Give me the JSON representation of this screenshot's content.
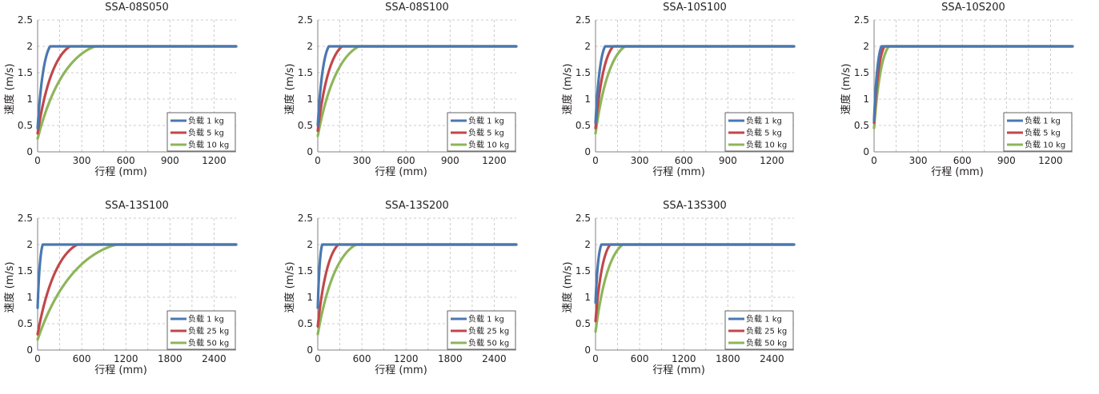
{
  "colors": {
    "load_light": "#4a78b0",
    "load_mid": "#c0474a",
    "load_heavy": "#8db55a",
    "grid": "#bfbfbf",
    "axis": "#808080"
  },
  "chart_data": [
    {
      "type": "line",
      "title": "SSA-08S050",
      "xlabel": "行程 (mm)",
      "ylabel": "速度 (m/s)",
      "xlim": [
        0,
        1350
      ],
      "ylim": [
        0,
        2.5
      ],
      "xticks": [
        0,
        300,
        600,
        900,
        1200
      ],
      "yticks": [
        0,
        0.5,
        1,
        1.5,
        2,
        2.5
      ],
      "grid": true,
      "legend": "bottom-right",
      "series": [
        {
          "name": "负载 1 kg",
          "values": [
            [
              0,
              0.45
            ],
            [
              85,
              2.0
            ],
            [
              1350,
              2.0
            ]
          ]
        },
        {
          "name": "负载 5 kg",
          "values": [
            [
              0,
              0.35
            ],
            [
              220,
              2.0
            ],
            [
              1350,
              2.0
            ]
          ]
        },
        {
          "name": "负载 10 kg",
          "values": [
            [
              0,
              0.25
            ],
            [
              390,
              2.0
            ],
            [
              1350,
              2.0
            ]
          ]
        }
      ]
    },
    {
      "type": "line",
      "title": "SSA-08S100",
      "xlabel": "行程 (mm)",
      "ylabel": "速度 (m/s)",
      "xlim": [
        0,
        1350
      ],
      "ylim": [
        0,
        2.5
      ],
      "xticks": [
        0,
        300,
        600,
        900,
        1200
      ],
      "yticks": [
        0,
        0.5,
        1,
        1.5,
        2,
        2.5
      ],
      "grid": true,
      "legend": "bottom-right",
      "series": [
        {
          "name": "负载 1 kg",
          "values": [
            [
              0,
              0.5
            ],
            [
              75,
              2.0
            ],
            [
              1350,
              2.0
            ]
          ]
        },
        {
          "name": "负载 5 kg",
          "values": [
            [
              0,
              0.4
            ],
            [
              165,
              2.0
            ],
            [
              1350,
              2.0
            ]
          ]
        },
        {
          "name": "负载 10 kg",
          "values": [
            [
              0,
              0.3
            ],
            [
              280,
              2.0
            ],
            [
              1350,
              2.0
            ]
          ]
        }
      ]
    },
    {
      "type": "line",
      "title": "SSA-10S100",
      "xlabel": "行程 (mm)",
      "ylabel": "速度 (m/s)",
      "xlim": [
        0,
        1350
      ],
      "ylim": [
        0,
        2.5
      ],
      "xticks": [
        0,
        300,
        600,
        900,
        1200
      ],
      "yticks": [
        0,
        0.5,
        1,
        1.5,
        2,
        2.5
      ],
      "grid": true,
      "legend": "bottom-right",
      "series": [
        {
          "name": "负载 1 kg",
          "values": [
            [
              0,
              0.55
            ],
            [
              65,
              2.0
            ],
            [
              1350,
              2.0
            ]
          ]
        },
        {
          "name": "负载 5 kg",
          "values": [
            [
              0,
              0.45
            ],
            [
              120,
              2.0
            ],
            [
              1350,
              2.0
            ]
          ]
        },
        {
          "name": "负载 10 kg",
          "values": [
            [
              0,
              0.35
            ],
            [
              200,
              2.0
            ],
            [
              1350,
              2.0
            ]
          ]
        }
      ]
    },
    {
      "type": "line",
      "title": "SSA-10S200",
      "xlabel": "行程 (mm)",
      "ylabel": "速度 (m/s)",
      "xlim": [
        0,
        1350
      ],
      "ylim": [
        0,
        2.5
      ],
      "xticks": [
        0,
        300,
        600,
        900,
        1200
      ],
      "yticks": [
        0,
        0.5,
        1,
        1.5,
        2,
        2.5
      ],
      "grid": true,
      "legend": "bottom-right",
      "series": [
        {
          "name": "负载 1 kg",
          "values": [
            [
              0,
              0.6
            ],
            [
              50,
              2.0
            ],
            [
              1350,
              2.0
            ]
          ]
        },
        {
          "name": "负载 5 kg",
          "values": [
            [
              0,
              0.55
            ],
            [
              70,
              2.0
            ],
            [
              1350,
              2.0
            ]
          ]
        },
        {
          "name": "负载 10 kg",
          "values": [
            [
              0,
              0.45
            ],
            [
              100,
              2.0
            ],
            [
              1350,
              2.0
            ]
          ]
        }
      ]
    },
    {
      "type": "line",
      "title": "SSA-13S100",
      "xlabel": "行程 (mm)",
      "ylabel": "速度 (m/s)",
      "xlim": [
        0,
        2700
      ],
      "ylim": [
        0,
        2.5
      ],
      "xticks": [
        0,
        600,
        1200,
        1800,
        2400
      ],
      "yticks": [
        0,
        0.5,
        1,
        1.5,
        2,
        2.5
      ],
      "grid": true,
      "legend": "bottom-right",
      "series": [
        {
          "name": "负载 1 kg",
          "values": [
            [
              0,
              0.8
            ],
            [
              70,
              2.0
            ],
            [
              2700,
              2.0
            ]
          ]
        },
        {
          "name": "负载 25 kg",
          "values": [
            [
              0,
              0.3
            ],
            [
              540,
              2.0
            ],
            [
              2700,
              2.0
            ]
          ]
        },
        {
          "name": "负载 50 kg",
          "values": [
            [
              0,
              0.2
            ],
            [
              1070,
              2.0
            ],
            [
              2700,
              2.0
            ]
          ]
        }
      ]
    },
    {
      "type": "line",
      "title": "SSA-13S200",
      "xlabel": "行程 (mm)",
      "ylabel": "速度 (m/s)",
      "xlim": [
        0,
        2700
      ],
      "ylim": [
        0,
        2.5
      ],
      "xticks": [
        0,
        600,
        1200,
        1800,
        2400
      ],
      "yticks": [
        0,
        0.5,
        1,
        1.5,
        2,
        2.5
      ],
      "grid": true,
      "legend": "bottom-right",
      "series": [
        {
          "name": "负载 1 kg",
          "values": [
            [
              0,
              0.8
            ],
            [
              60,
              2.0
            ],
            [
              2700,
              2.0
            ]
          ]
        },
        {
          "name": "负载 25 kg",
          "values": [
            [
              0,
              0.45
            ],
            [
              280,
              2.0
            ],
            [
              2700,
              2.0
            ]
          ]
        },
        {
          "name": "负载 50 kg",
          "values": [
            [
              0,
              0.3
            ],
            [
              520,
              2.0
            ],
            [
              2700,
              2.0
            ]
          ]
        }
      ]
    },
    {
      "type": "line",
      "title": "SSA-13S300",
      "xlabel": "行程 (mm)",
      "ylabel": "速度 (m/s)",
      "xlim": [
        0,
        2700
      ],
      "ylim": [
        0,
        2.5
      ],
      "xticks": [
        0,
        600,
        1200,
        1800,
        2400
      ],
      "yticks": [
        0,
        0.5,
        1,
        1.5,
        2,
        2.5
      ],
      "grid": true,
      "legend": "bottom-right",
      "series": [
        {
          "name": "负载 1 kg",
          "values": [
            [
              0,
              0.9
            ],
            [
              80,
              2.0
            ],
            [
              2700,
              2.0
            ]
          ]
        },
        {
          "name": "负载 25 kg",
          "values": [
            [
              0,
              0.55
            ],
            [
              200,
              2.0
            ],
            [
              2700,
              2.0
            ]
          ]
        },
        {
          "name": "负载 50 kg",
          "values": [
            [
              0,
              0.35
            ],
            [
              370,
              2.0
            ],
            [
              2700,
              2.0
            ]
          ]
        }
      ]
    }
  ]
}
